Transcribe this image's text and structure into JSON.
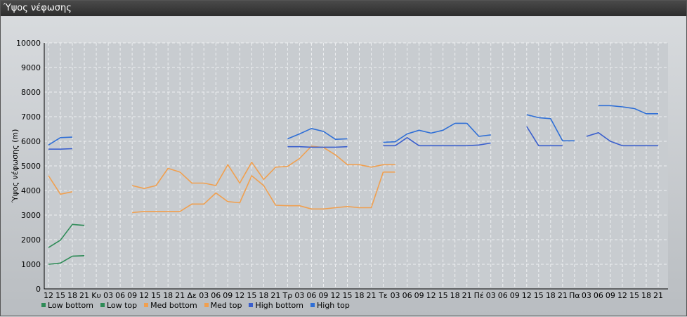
{
  "window": {
    "title": "Ύψος νέφωσης"
  },
  "chart_data": {
    "type": "line",
    "title": "",
    "ylabel": "Ύψος νέφωσης (m)",
    "xlabel": "",
    "ylim": [
      0,
      10000
    ],
    "yticks": [
      0,
      1000,
      2000,
      3000,
      4000,
      5000,
      6000,
      7000,
      8000,
      9000,
      10000
    ],
    "grid": true,
    "legend_position": "bottom-left",
    "x": [
      "12",
      "15",
      "18",
      "21",
      "Κυ",
      "03",
      "06",
      "09",
      "12",
      "15",
      "18",
      "21",
      "Δε",
      "03",
      "06",
      "09",
      "12",
      "15",
      "18",
      "21",
      "Τρ",
      "03",
      "06",
      "09",
      "12",
      "15",
      "18",
      "21",
      "Τε",
      "03",
      "06",
      "09",
      "12",
      "15",
      "18",
      "21",
      "Πέ",
      "03",
      "06",
      "09",
      "12",
      "15",
      "18",
      "21",
      "Πα",
      "03",
      "06",
      "09",
      "12",
      "15",
      "18",
      "21"
    ],
    "series": [
      {
        "name": "Low bottom",
        "color": "#2e8b57",
        "values": [
          1000,
          1050,
          1330,
          1350,
          null,
          null,
          null,
          null,
          null,
          null,
          null,
          null,
          null,
          null,
          null,
          null,
          null,
          null,
          null,
          null,
          null,
          null,
          null,
          null,
          null,
          null,
          null,
          null,
          null,
          null,
          null,
          null,
          null,
          null,
          null,
          null,
          null,
          null,
          null,
          null,
          null,
          null,
          null,
          null,
          null,
          null,
          null,
          null,
          null,
          null,
          null,
          null
        ]
      },
      {
        "name": "Low top",
        "color": "#2e8b57",
        "values": [
          1680,
          1980,
          2620,
          2580,
          null,
          null,
          null,
          null,
          null,
          null,
          null,
          null,
          null,
          null,
          null,
          null,
          null,
          null,
          null,
          null,
          null,
          null,
          null,
          null,
          null,
          null,
          null,
          null,
          null,
          null,
          null,
          null,
          null,
          null,
          null,
          null,
          null,
          null,
          null,
          null,
          null,
          null,
          null,
          null,
          null,
          null,
          null,
          null,
          null,
          null,
          null,
          null
        ]
      },
      {
        "name": "Med bottom",
        "color": "#f0a050",
        "values": [
          null,
          null,
          null,
          null,
          null,
          null,
          null,
          3100,
          3150,
          3150,
          3150,
          3150,
          3450,
          3450,
          3900,
          3550,
          3500,
          4600,
          4200,
          3400,
          3380,
          3380,
          3250,
          3250,
          3300,
          3350,
          3300,
          3300,
          4750,
          4750,
          null,
          null,
          null,
          null,
          null,
          null,
          null,
          null,
          null,
          null,
          null,
          null,
          null,
          null,
          null,
          null,
          null,
          null,
          null,
          null,
          null,
          null
        ]
      },
      {
        "name": "Med top",
        "color": "#f0a050",
        "values": [
          4600,
          3850,
          3950,
          null,
          null,
          null,
          null,
          4200,
          4080,
          4200,
          4900,
          4750,
          4300,
          4300,
          4200,
          5050,
          4300,
          5150,
          4450,
          4950,
          4980,
          5300,
          5800,
          5750,
          5450,
          5050,
          5050,
          4950,
          5050,
          5050,
          null,
          null,
          null,
          null,
          null,
          null,
          null,
          null,
          null,
          null,
          null,
          null,
          null,
          null,
          null,
          null,
          null,
          null,
          null,
          null,
          null,
          null
        ]
      },
      {
        "name": "High bottom",
        "color": "#3a5fcd",
        "values": [
          5680,
          5680,
          5700,
          null,
          null,
          null,
          null,
          null,
          null,
          null,
          null,
          null,
          null,
          null,
          null,
          null,
          null,
          null,
          null,
          null,
          5780,
          5780,
          5760,
          5760,
          5760,
          5780,
          null,
          null,
          5820,
          5820,
          6150,
          5820,
          5820,
          5820,
          5820,
          5820,
          5850,
          5930,
          null,
          null,
          6600,
          5820,
          5820,
          5820,
          null,
          6200,
          6350,
          6000,
          5820,
          5820,
          5820,
          5820
        ]
      },
      {
        "name": "High top",
        "color": "#2f6fd6",
        "values": [
          5850,
          6150,
          6170,
          null,
          null,
          null,
          null,
          null,
          null,
          null,
          null,
          null,
          null,
          null,
          null,
          null,
          null,
          null,
          null,
          null,
          6100,
          6300,
          6520,
          6400,
          6080,
          6100,
          null,
          null,
          5960,
          5980,
          6300,
          6450,
          6330,
          6450,
          6730,
          6730,
          6200,
          6260,
          null,
          null,
          7080,
          6960,
          6920,
          6020,
          6020,
          null,
          7450,
          7450,
          7400,
          7330,
          7120,
          7120
        ]
      }
    ]
  }
}
